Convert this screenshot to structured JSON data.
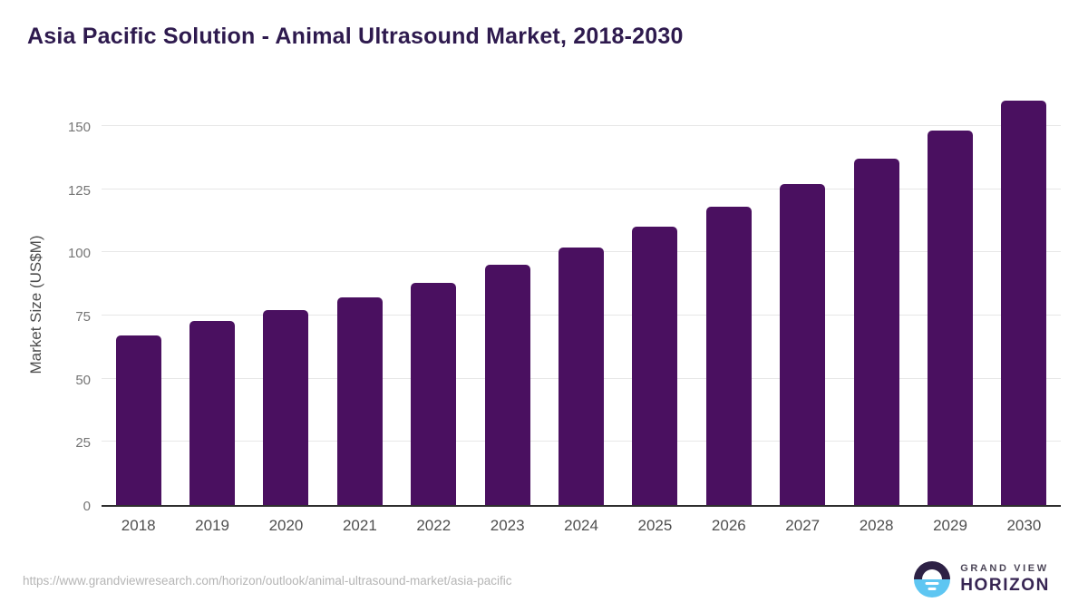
{
  "title": "Asia Pacific Solution - Animal Ultrasound Market, 2018-2030",
  "source_url": "https://www.grandviewresearch.com/horizon/outlook/animal-ultrasound-market/asia-pacific",
  "logo": {
    "top_text": "GRAND VIEW",
    "bottom_text": "HORIZON",
    "circle_top_color": "#2d2145",
    "circle_bottom_color": "#5ec6f2"
  },
  "colors": {
    "title": "#2e1a4e",
    "bar": "#4a1060",
    "gridline": "#e7e7e7",
    "axis_line": "#2f2f2f",
    "y_tick": "#757575",
    "x_tick": "#4f4f4f",
    "url": "#b5b5b5"
  },
  "chart_data": {
    "type": "bar",
    "title": "Asia Pacific Solution - Animal Ultrasound Market, 2018-2030",
    "categories": [
      "2018",
      "2019",
      "2020",
      "2021",
      "2022",
      "2023",
      "2024",
      "2025",
      "2026",
      "2027",
      "2028",
      "2029",
      "2030"
    ],
    "values": [
      67,
      73,
      77,
      82,
      88,
      95,
      102,
      110,
      118,
      127,
      137,
      148,
      160
    ],
    "xlabel": "",
    "ylabel": "Market Size (US$M)",
    "yticks": [
      0,
      25,
      50,
      75,
      100,
      125,
      150
    ],
    "ylim": [
      0,
      160
    ],
    "grid": "horizontal",
    "legend_position": "none",
    "bar_color": "#4a1060"
  }
}
